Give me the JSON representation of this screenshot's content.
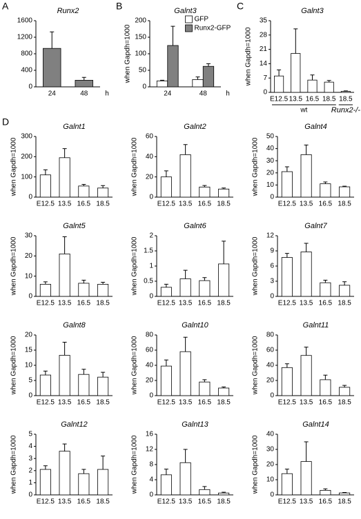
{
  "chart_data": [
    {
      "type": "bar",
      "panel": "A",
      "title": "Runx2",
      "categories": [
        "24",
        "48"
      ],
      "x_label": "h",
      "color": "#808080",
      "values": [
        930,
        160
      ],
      "errors": [
        400,
        70
      ],
      "ylim": [
        0,
        1600
      ],
      "yticks": [
        0,
        400,
        800,
        1200,
        1600
      ]
    },
    {
      "type": "bar",
      "panel": "B",
      "title": "Galnt3",
      "y_label": "when Gapdh=1000",
      "categories": [
        "24",
        "48"
      ],
      "x_label": "h",
      "series": [
        {
          "name": "GFP",
          "color": "#ffffff",
          "values": [
            18,
            22
          ],
          "errors": [
            2,
            8
          ]
        },
        {
          "name": "Runx2-GFP",
          "color": "#808080",
          "values": [
            125,
            62
          ],
          "errors": [
            58,
            8
          ]
        }
      ],
      "ylim": [
        0,
        200
      ],
      "yticks": [
        0,
        50,
        100,
        150,
        200
      ]
    },
    {
      "type": "bar",
      "panel": "C",
      "title": "Galnt3",
      "y_label": "when Gapdh=1000",
      "categories": [
        "E12.5",
        "13.5",
        "16.5",
        "18.5",
        "18.5"
      ],
      "group_labels": [
        "wt",
        "Runx2-/-"
      ],
      "color": "#ffffff",
      "values": [
        8,
        19,
        6,
        5,
        0.5
      ],
      "errors": [
        3,
        12,
        2.5,
        0.8,
        0.2
      ],
      "ylim": [
        0,
        35
      ],
      "yticks": [
        0,
        7,
        14,
        21,
        28,
        35
      ]
    },
    {
      "type": "bar",
      "panel": "D",
      "title": "Galnt1",
      "y_label": "when Gapdh=1000",
      "categories": [
        "E12.5",
        "13.5",
        "16.5",
        "18.5"
      ],
      "color": "#ffffff",
      "values": [
        110,
        195,
        55,
        45
      ],
      "errors": [
        25,
        45,
        8,
        12
      ],
      "ylim": [
        0,
        300
      ],
      "yticks": [
        0,
        100,
        200,
        300
      ]
    },
    {
      "type": "bar",
      "title": "Galnt2",
      "y_label": "when Gapdh=1000",
      "categories": [
        "E12.5",
        "13.5",
        "16.5",
        "18.5"
      ],
      "color": "#ffffff",
      "values": [
        20,
        42,
        10,
        8
      ],
      "errors": [
        6,
        10,
        1.5,
        1
      ],
      "ylim": [
        0,
        60
      ],
      "yticks": [
        0,
        20,
        40,
        60
      ]
    },
    {
      "type": "bar",
      "title": "Galnt4",
      "y_label": "when Gapdh=1000",
      "categories": [
        "E12.5",
        "13.5",
        "16.5",
        "18.5"
      ],
      "color": "#ffffff",
      "values": [
        21,
        35,
        11,
        8.5
      ],
      "errors": [
        4,
        8,
        1.5,
        0.5
      ],
      "ylim": [
        0,
        50
      ],
      "yticks": [
        0,
        10,
        20,
        30,
        40,
        50
      ]
    },
    {
      "type": "bar",
      "title": "Galnt5",
      "y_label": "when Gapdh=1000",
      "categories": [
        "E12.5",
        "13.5",
        "16.5",
        "18.5"
      ],
      "color": "#ffffff",
      "values": [
        6,
        21,
        6.5,
        6
      ],
      "errors": [
        1.2,
        8.5,
        1.5,
        1
      ],
      "ylim": [
        0,
        30
      ],
      "yticks": [
        0,
        10,
        20,
        30
      ]
    },
    {
      "type": "bar",
      "title": "Galnt6",
      "y_label": "when Gapdh=1000",
      "categories": [
        "E12.5",
        "13.5",
        "16.5",
        "18.5"
      ],
      "color": "#ffffff",
      "values": [
        0.3,
        0.58,
        0.52,
        1.07
      ],
      "errors": [
        0.1,
        0.28,
        0.1,
        0.75
      ],
      "ylim": [
        0,
        2
      ],
      "yticks": [
        0,
        0.5,
        1,
        1.5,
        2
      ]
    },
    {
      "type": "bar",
      "title": "Galnt7",
      "y_label": "when Gapdh=1000",
      "categories": [
        "E12.5",
        "13.5",
        "16.5",
        "18.5"
      ],
      "color": "#ffffff",
      "values": [
        7.7,
        8.8,
        2.7,
        2.2
      ],
      "errors": [
        0.8,
        1.7,
        0.5,
        0.7
      ],
      "ylim": [
        0,
        12
      ],
      "yticks": [
        0,
        3,
        6,
        9,
        12
      ]
    },
    {
      "type": "bar",
      "title": "Galnt8",
      "y_label": "when Gapdh=1000",
      "categories": [
        "E12.5",
        "13.5",
        "16.5",
        "18.5"
      ],
      "color": "#ffffff",
      "values": [
        6.8,
        13.3,
        7,
        6.1
      ],
      "errors": [
        1.3,
        4.3,
        1.7,
        1.6
      ],
      "ylim": [
        0,
        20
      ],
      "yticks": [
        0,
        5,
        10,
        15,
        20
      ]
    },
    {
      "type": "bar",
      "title": "Galnt10",
      "y_label": "when Gapdh=1000",
      "categories": [
        "E12.5",
        "13.5",
        "16.5",
        "18.5"
      ],
      "color": "#ffffff",
      "values": [
        39,
        58,
        18,
        10
      ],
      "errors": [
        8,
        19,
        3,
        1.5
      ],
      "ylim": [
        0,
        80
      ],
      "yticks": [
        0,
        20,
        40,
        60,
        80
      ]
    },
    {
      "type": "bar",
      "title": "Galnt11",
      "y_label": "when Gapdh=1000",
      "categories": [
        "E12.5",
        "13.5",
        "16.5",
        "18.5"
      ],
      "color": "#ffffff",
      "values": [
        37,
        53,
        21,
        11
      ],
      "errors": [
        5,
        11,
        6,
        2.5
      ],
      "ylim": [
        0,
        80
      ],
      "yticks": [
        0,
        20,
        40,
        60,
        80
      ]
    },
    {
      "type": "bar",
      "title": "Galnt12",
      "y_label": "when Gapdh=1000",
      "categories": [
        "E12.5",
        "13.5",
        "16.5",
        "18.5"
      ],
      "color": "#ffffff",
      "values": [
        2.1,
        3.6,
        1.75,
        2.1
      ],
      "errors": [
        0.3,
        0.6,
        0.35,
        1.1
      ],
      "ylim": [
        0,
        5
      ],
      "yticks": [
        0,
        1,
        2,
        3,
        4,
        5
      ]
    },
    {
      "type": "bar",
      "title": "Galnt13",
      "y_label": "when Gapdh=1000",
      "categories": [
        "E12.5",
        "13.5",
        "16.5",
        "18.5"
      ],
      "color": "#ffffff",
      "values": [
        5.3,
        8.5,
        1.4,
        0.5
      ],
      "errors": [
        1.5,
        3.5,
        0.8,
        0.2
      ],
      "ylim": [
        0,
        16
      ],
      "yticks": [
        0,
        4,
        8,
        12,
        16
      ]
    },
    {
      "type": "bar",
      "title": "Galnt14",
      "y_label": "when Gapdh=1000",
      "categories": [
        "E12.5",
        "13.5",
        "16.5",
        "18.5"
      ],
      "color": "#ffffff",
      "values": [
        14,
        22,
        3,
        1.3
      ],
      "errors": [
        3,
        13,
        1,
        0.3
      ],
      "ylim": [
        0,
        40
      ],
      "yticks": [
        0,
        10,
        20,
        30,
        40
      ]
    }
  ]
}
